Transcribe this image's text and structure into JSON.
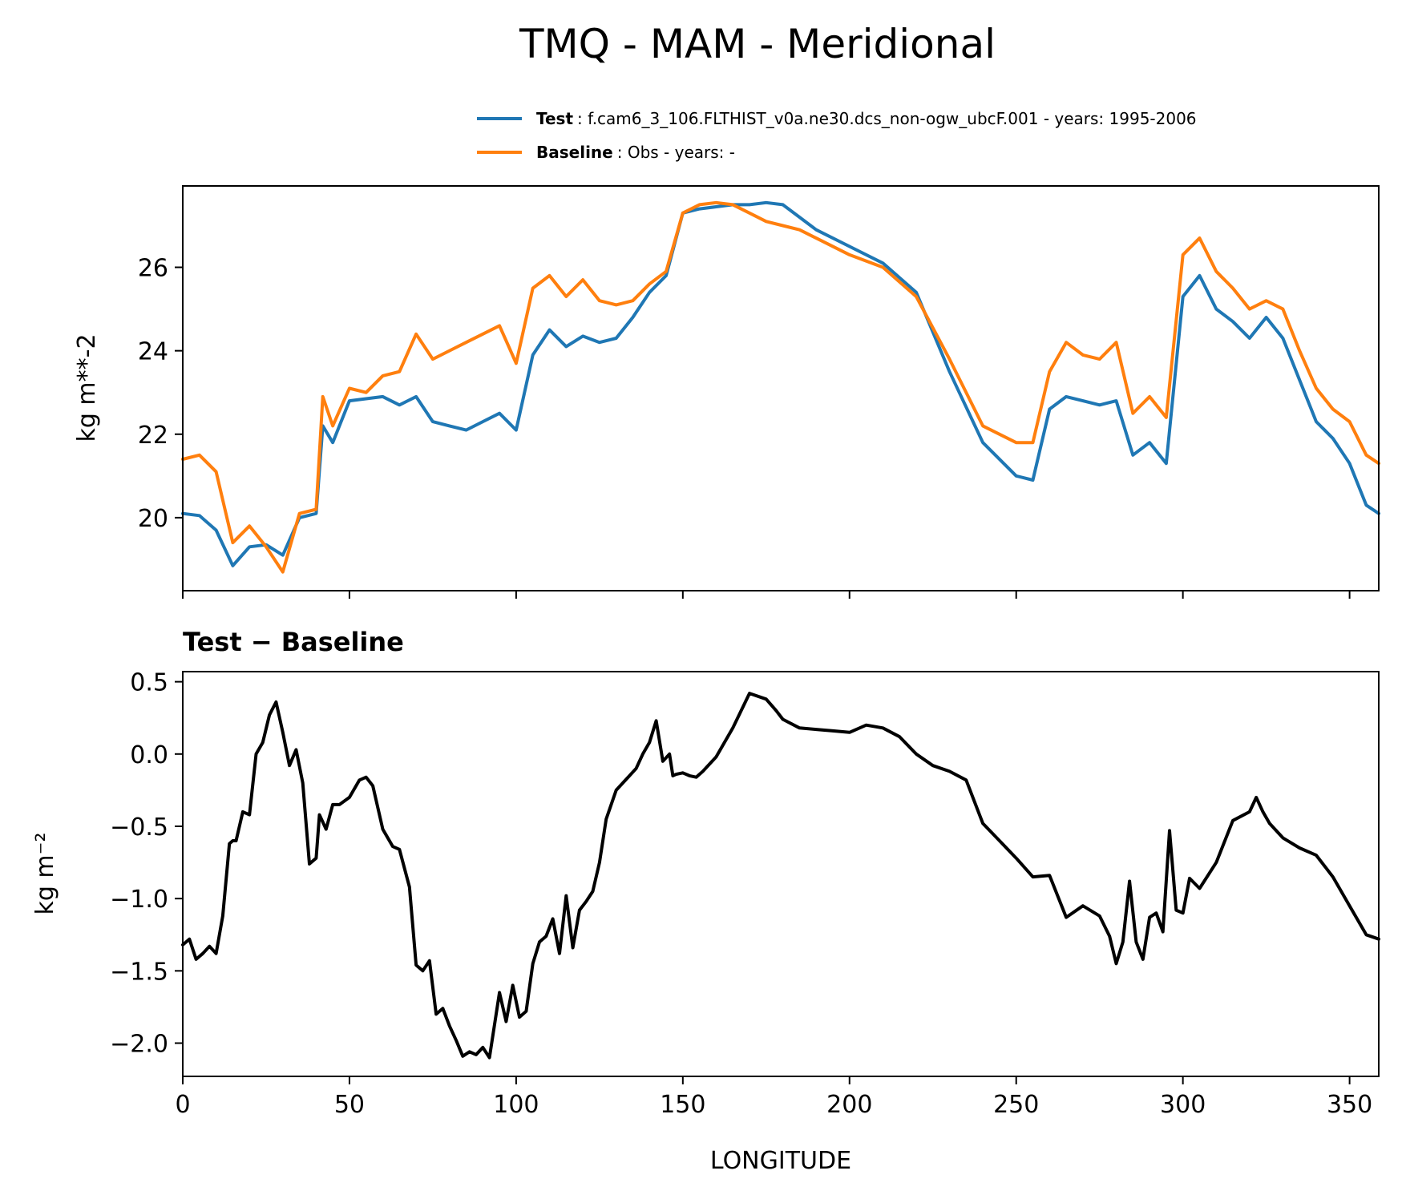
{
  "chart_data": [
    {
      "type": "line",
      "title": "TMQ - MAM - Meridional",
      "ylabel": "kg m**-2",
      "xlabel": "",
      "xlim": [
        0,
        358.75
      ],
      "ylim": [
        18.25,
        27.95
      ],
      "yticks": [
        20,
        22,
        24,
        26
      ],
      "ytick_labels": [
        "20",
        "22",
        "24",
        "26"
      ],
      "xticks": [
        0,
        50,
        100,
        150,
        200,
        250,
        300,
        350
      ],
      "legend": [
        {
          "name": "Test",
          "description": ": f.cam6_3_106.FLTHIST_v0a.ne30.dcs_non-ogw_ubcF.001 - years: 1995-2006",
          "color": "#1f77b4"
        },
        {
          "name": "Baseline",
          "description": ": Obs - years: -",
          "color": "#ff7f0e"
        }
      ],
      "series": [
        {
          "name": "Test",
          "color": "#1f77b4",
          "x": [
            0,
            5,
            10,
            15,
            20,
            25,
            30,
            35,
            40,
            42,
            45,
            50,
            55,
            60,
            65,
            70,
            75,
            80,
            85,
            90,
            95,
            100,
            105,
            110,
            115,
            120,
            125,
            130,
            135,
            140,
            145,
            150,
            155,
            160,
            165,
            170,
            175,
            180,
            185,
            190,
            200,
            210,
            220,
            230,
            240,
            250,
            255,
            260,
            265,
            270,
            275,
            280,
            285,
            290,
            295,
            300,
            305,
            310,
            315,
            320,
            325,
            330,
            335,
            340,
            345,
            350,
            355,
            358.75
          ],
          "y": [
            20.1,
            20.05,
            19.7,
            18.85,
            19.3,
            19.35,
            19.1,
            20.0,
            20.1,
            22.2,
            21.8,
            22.8,
            22.85,
            22.9,
            22.7,
            22.9,
            22.3,
            22.2,
            22.1,
            22.3,
            22.5,
            22.1,
            23.9,
            24.5,
            24.1,
            24.35,
            24.2,
            24.3,
            24.8,
            25.4,
            25.8,
            27.3,
            27.4,
            27.45,
            27.5,
            27.5,
            27.55,
            27.5,
            27.2,
            26.9,
            26.5,
            26.1,
            25.4,
            23.5,
            21.8,
            21.0,
            20.9,
            22.6,
            22.9,
            22.8,
            22.7,
            22.8,
            21.5,
            21.8,
            21.3,
            25.3,
            25.8,
            25.0,
            24.7,
            24.3,
            24.8,
            24.3,
            23.3,
            22.3,
            21.9,
            21.3,
            20.3,
            20.1
          ]
        },
        {
          "name": "Baseline",
          "color": "#ff7f0e",
          "x": [
            0,
            5,
            10,
            15,
            20,
            25,
            30,
            35,
            40,
            42,
            45,
            50,
            55,
            60,
            65,
            70,
            75,
            80,
            85,
            90,
            95,
            100,
            105,
            110,
            115,
            120,
            125,
            130,
            135,
            140,
            145,
            150,
            155,
            160,
            165,
            170,
            175,
            180,
            185,
            190,
            200,
            210,
            220,
            230,
            240,
            250,
            255,
            260,
            265,
            270,
            275,
            280,
            285,
            290,
            295,
            300,
            305,
            310,
            315,
            320,
            325,
            330,
            335,
            340,
            345,
            350,
            355,
            358.75
          ],
          "y": [
            21.4,
            21.5,
            21.1,
            19.4,
            19.8,
            19.3,
            18.7,
            20.1,
            20.2,
            22.9,
            22.2,
            23.1,
            23.0,
            23.4,
            23.5,
            24.4,
            23.8,
            24.0,
            24.2,
            24.4,
            24.6,
            23.7,
            25.5,
            25.8,
            25.3,
            25.7,
            25.2,
            25.1,
            25.2,
            25.6,
            25.9,
            27.3,
            27.5,
            27.55,
            27.5,
            27.3,
            27.1,
            27.0,
            26.9,
            26.7,
            26.3,
            26.0,
            25.3,
            23.8,
            22.2,
            21.8,
            21.8,
            23.5,
            24.2,
            23.9,
            23.8,
            24.2,
            22.5,
            22.9,
            22.4,
            26.3,
            26.7,
            25.9,
            25.5,
            25.0,
            25.2,
            25.0,
            24.0,
            23.1,
            22.6,
            22.3,
            21.5,
            21.3
          ]
        }
      ]
    },
    {
      "type": "line",
      "title": "Test − Baseline",
      "ylabel": "kg m⁻²",
      "xlabel": "LONGITUDE",
      "xlim": [
        0,
        358.75
      ],
      "ylim": [
        -2.23,
        0.57
      ],
      "yticks": [
        -2.0,
        -1.5,
        -1.0,
        -0.5,
        0.0,
        0.5
      ],
      "ytick_labels": [
        "−2.0",
        "−1.5",
        "−1.0",
        "−0.5",
        "0.0",
        "0.5"
      ],
      "xticks": [
        0,
        50,
        100,
        150,
        200,
        250,
        300,
        350
      ],
      "xtick_labels": [
        "0",
        "50",
        "100",
        "150",
        "200",
        "250",
        "300",
        "350"
      ],
      "series": [
        {
          "name": "Test - Baseline",
          "color": "#000000",
          "x": [
            0,
            2,
            4,
            6,
            8,
            10,
            12,
            14,
            15,
            16,
            18,
            20,
            22,
            24,
            26,
            28,
            30,
            32,
            34,
            36,
            38,
            40,
            41,
            43,
            45,
            47,
            50,
            53,
            55,
            57,
            60,
            63,
            65,
            68,
            70,
            72,
            74,
            76,
            78,
            80,
            82,
            84,
            86,
            88,
            90,
            92,
            95,
            97,
            99,
            101,
            103,
            105,
            107,
            109,
            111,
            113,
            115,
            117,
            119,
            121,
            123,
            125,
            127,
            130,
            132,
            134,
            136,
            138,
            140,
            142,
            144,
            146,
            147,
            148,
            150,
            152,
            154,
            156,
            160,
            165,
            170,
            175,
            178,
            180,
            185,
            190,
            195,
            200,
            205,
            210,
            215,
            220,
            225,
            230,
            235,
            240,
            245,
            250,
            255,
            260,
            265,
            270,
            275,
            278,
            280,
            282,
            284,
            286,
            288,
            290,
            292,
            294,
            296,
            298,
            300,
            302,
            305,
            310,
            315,
            320,
            322,
            324,
            326,
            330,
            335,
            340,
            345,
            350,
            355,
            358.75
          ],
          "y": [
            -1.32,
            -1.28,
            -1.42,
            -1.38,
            -1.33,
            -1.38,
            -1.12,
            -0.62,
            -0.6,
            -0.6,
            -0.4,
            -0.42,
            0.0,
            0.08,
            0.27,
            0.36,
            0.15,
            -0.08,
            0.03,
            -0.2,
            -0.76,
            -0.72,
            -0.42,
            -0.52,
            -0.35,
            -0.35,
            -0.3,
            -0.18,
            -0.16,
            -0.22,
            -0.52,
            -0.64,
            -0.66,
            -0.92,
            -1.46,
            -1.5,
            -1.43,
            -1.8,
            -1.76,
            -1.88,
            -1.98,
            -2.09,
            -2.06,
            -2.08,
            -2.03,
            -2.1,
            -1.65,
            -1.85,
            -1.6,
            -1.82,
            -1.78,
            -1.45,
            -1.3,
            -1.26,
            -1.14,
            -1.38,
            -0.98,
            -1.34,
            -1.08,
            -1.02,
            -0.95,
            -0.75,
            -0.45,
            -0.25,
            -0.2,
            -0.15,
            -0.1,
            0.0,
            0.08,
            0.23,
            -0.05,
            0.0,
            -0.15,
            -0.14,
            -0.13,
            -0.15,
            -0.16,
            -0.12,
            -0.02,
            0.18,
            0.42,
            0.38,
            0.3,
            0.24,
            0.18,
            0.17,
            0.16,
            0.15,
            0.2,
            0.18,
            0.12,
            0.0,
            -0.08,
            -0.12,
            -0.18,
            -0.48,
            -0.6,
            -0.72,
            -0.85,
            -0.84,
            -1.13,
            -1.05,
            -1.12,
            -1.26,
            -1.45,
            -1.3,
            -0.88,
            -1.3,
            -1.42,
            -1.13,
            -1.1,
            -1.23,
            -0.53,
            -1.08,
            -1.1,
            -0.86,
            -0.93,
            -0.75,
            -0.46,
            -0.4,
            -0.3,
            -0.4,
            -0.48,
            -0.58,
            -0.65,
            -0.7,
            -0.85,
            -1.05,
            -1.25,
            -1.28
          ]
        }
      ]
    }
  ]
}
